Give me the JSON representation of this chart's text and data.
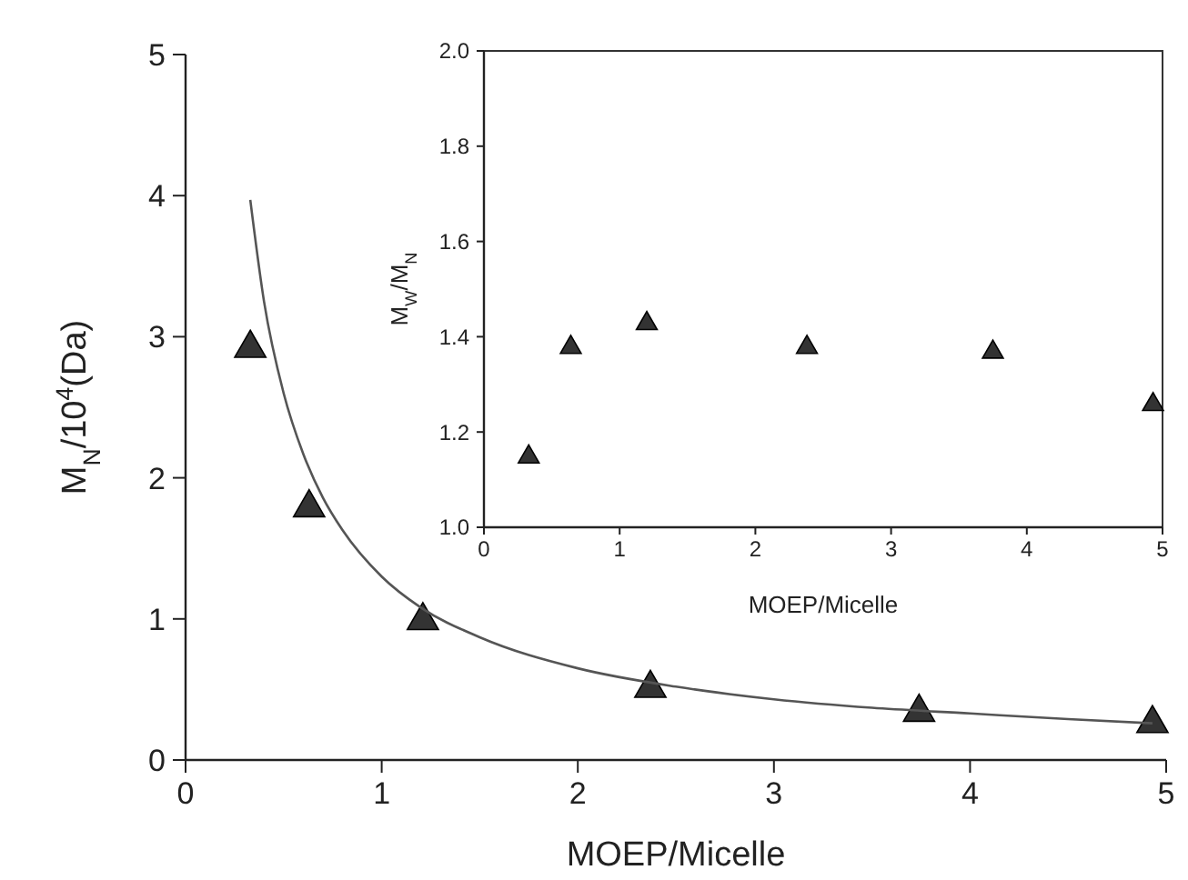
{
  "chart_data": [
    {
      "type": "scatter",
      "xlabel": "MOEP/Micelle",
      "ylabel": "M$_{N}$/10$^{4}$(Da)",
      "xlim": [
        0,
        5
      ],
      "ylim": [
        0,
        5
      ],
      "xticks": [
        0,
        1,
        2,
        3,
        4,
        5
      ],
      "yticks": [
        0,
        1,
        2,
        3,
        4,
        5
      ],
      "grid": false,
      "marker": "triangle",
      "series": [
        {
          "color": "#333333",
          "x": [
            0.33,
            0.63,
            1.21,
            2.37,
            3.74,
            4.93
          ],
          "values": [
            2.93,
            1.8,
            1.0,
            0.52,
            0.35,
            0.27
          ]
        },
        {
          "type": "line",
          "color": "#555555",
          "marker": "none",
          "x": [
            0.33,
            0.4,
            0.5,
            0.6,
            0.7,
            0.8,
            1.0,
            1.2,
            1.5,
            2.0,
            2.5,
            3.0,
            3.5,
            4.0,
            4.5,
            4.93
          ],
          "values": [
            3.97,
            3.25,
            2.6,
            2.17,
            1.86,
            1.63,
            1.3,
            1.08,
            0.87,
            0.65,
            0.52,
            0.43,
            0.37,
            0.33,
            0.29,
            0.26
          ]
        }
      ]
    },
    {
      "type": "scatter",
      "xlabel": "MOEP/Micelle",
      "ylabel": "M$_{W}$/M$_{N}$",
      "xlim": [
        0,
        5
      ],
      "ylim": [
        1.0,
        2.0
      ],
      "xticks": [
        0,
        1,
        2,
        3,
        4,
        5
      ],
      "yticks": [
        {
          "value": 1.0,
          "label": "1.0"
        },
        1.2,
        1.4,
        1.6,
        1.8,
        {
          "value": 2.0,
          "label": "2.0"
        }
      ],
      "grid": false,
      "marker": "triangle",
      "series": [
        {
          "color": "#333333",
          "x": [
            0.33,
            0.64,
            1.2,
            2.38,
            3.75,
            4.93
          ],
          "values": [
            1.15,
            1.38,
            1.43,
            1.38,
            1.37,
            1.26
          ]
        }
      ]
    }
  ]
}
